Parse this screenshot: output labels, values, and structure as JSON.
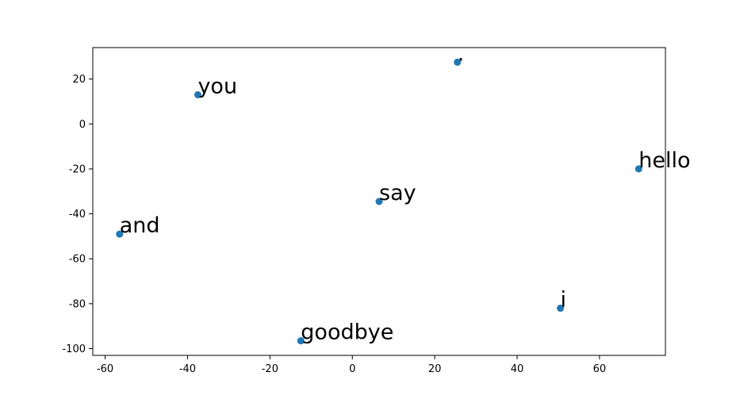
{
  "chart_data": {
    "type": "scatter",
    "title": "",
    "xlabel": "",
    "ylabel": "",
    "xlim": [
      -63,
      76
    ],
    "ylim": [
      -103,
      34
    ],
    "x_ticks": [
      -60,
      -40,
      -20,
      0,
      20,
      40,
      60
    ],
    "y_ticks": [
      20,
      0,
      -20,
      -40,
      -60,
      -80,
      -100
    ],
    "grid": false,
    "marker_color": "#1f77b4",
    "points": [
      {
        "label": "you",
        "x": -37.5,
        "y": 13
      },
      {
        "label": ".",
        "x": 25.5,
        "y": 27.5
      },
      {
        "label": "hello",
        "x": 69.5,
        "y": -20
      },
      {
        "label": "say",
        "x": 6.5,
        "y": -34.5
      },
      {
        "label": "and",
        "x": -56.5,
        "y": -49
      },
      {
        "label": "i",
        "x": 50.5,
        "y": -82
      },
      {
        "label": "goodbye",
        "x": -12.5,
        "y": -96.5
      }
    ]
  }
}
